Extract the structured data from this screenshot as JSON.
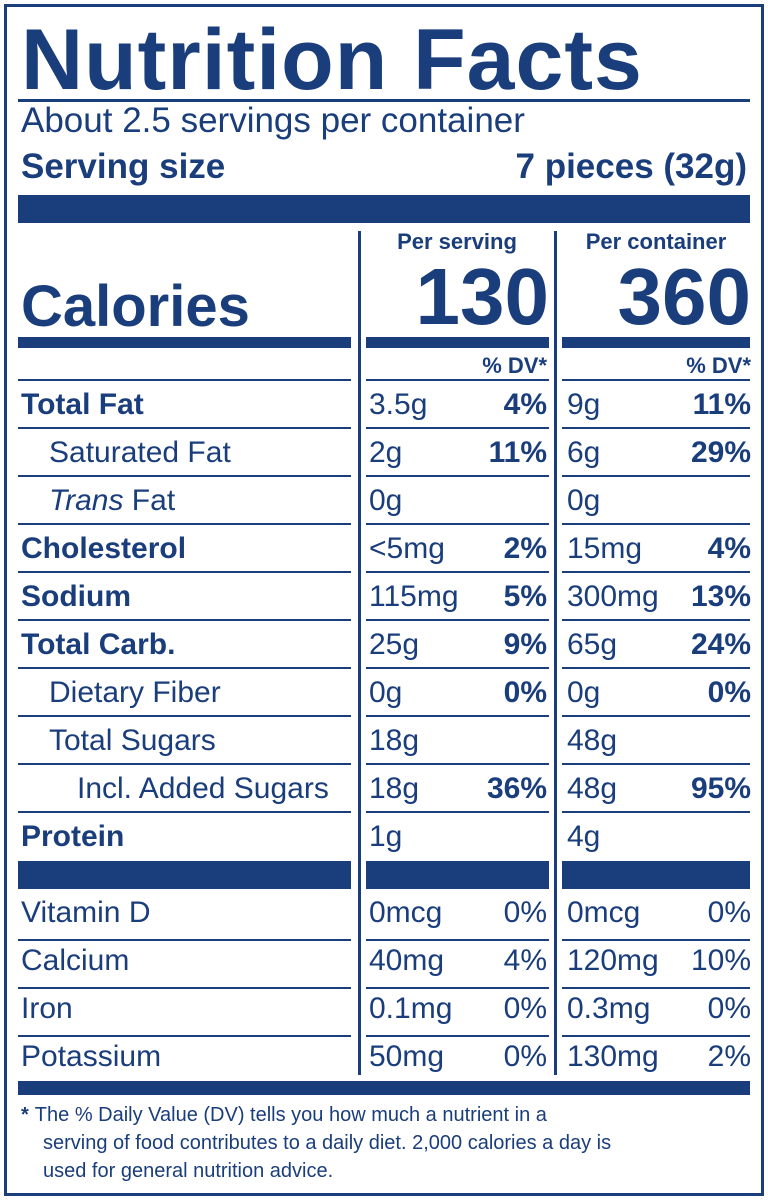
{
  "title": "Nutrition Facts",
  "servings_per_container": "About 2.5 servings per container",
  "serving_size_label": "Serving size",
  "serving_size_value": "7 pieces (32g)",
  "columns": {
    "per_serving": "Per serving",
    "per_container": "Per container"
  },
  "calories": {
    "label": "Calories",
    "per_serving": "130",
    "per_container": "360"
  },
  "dv_header": "% DV*",
  "nutrients": [
    {
      "name": "Total Fat",
      "amount_serving": "3.5g",
      "dv_serving": "4%",
      "amount_container": "9g",
      "dv_container": "11%"
    },
    {
      "name": "Saturated Fat",
      "amount_serving": "2g",
      "dv_serving": "11%",
      "amount_container": "6g",
      "dv_container": "29%"
    },
    {
      "name_italic": "Trans",
      "name": " Fat",
      "amount_serving": "0g",
      "dv_serving": "",
      "amount_container": "0g",
      "dv_container": ""
    },
    {
      "name": "Cholesterol",
      "amount_serving": "<5mg",
      "dv_serving": "2%",
      "amount_container": "15mg",
      "dv_container": "4%"
    },
    {
      "name": "Sodium",
      "amount_serving": "115mg",
      "dv_serving": "5%",
      "amount_container": "300mg",
      "dv_container": "13%"
    },
    {
      "name": "Total Carb.",
      "amount_serving": "25g",
      "dv_serving": "9%",
      "amount_container": "65g",
      "dv_container": "24%"
    },
    {
      "name": "Dietary Fiber",
      "amount_serving": "0g",
      "dv_serving": "0%",
      "amount_container": "0g",
      "dv_container": "0%"
    },
    {
      "name": "Total Sugars",
      "amount_serving": "18g",
      "dv_serving": "",
      "amount_container": "48g",
      "dv_container": ""
    },
    {
      "name": "Incl. Added Sugars",
      "amount_serving": "18g",
      "dv_serving": "36%",
      "amount_container": "48g",
      "dv_container": "95%"
    },
    {
      "name": "Protein",
      "amount_serving": "1g",
      "dv_serving": "",
      "amount_container": "4g",
      "dv_container": ""
    }
  ],
  "vitamins": [
    {
      "name": "Vitamin D",
      "amount_serving": "0mcg",
      "dv_serving": "0%",
      "amount_container": "0mcg",
      "dv_container": "0%"
    },
    {
      "name": "Calcium",
      "amount_serving": "40mg",
      "dv_serving": "4%",
      "amount_container": "120mg",
      "dv_container": "10%"
    },
    {
      "name": "Iron",
      "amount_serving": "0.1mg",
      "dv_serving": "0%",
      "amount_container": "0.3mg",
      "dv_container": "0%"
    },
    {
      "name": "Potassium",
      "amount_serving": "50mg",
      "dv_serving": "0%",
      "amount_container": "130mg",
      "dv_container": "2%"
    }
  ],
  "footnote": {
    "star": "*",
    "line1": "The % Daily Value (DV) tells you how much a nutrient in a",
    "line2": "serving of food contributes to a daily diet. 2,000 calories a day is",
    "line3": "used for general nutrition advice."
  },
  "colors": {
    "ink": "#1a3d7c",
    "background": "#ffffff"
  }
}
